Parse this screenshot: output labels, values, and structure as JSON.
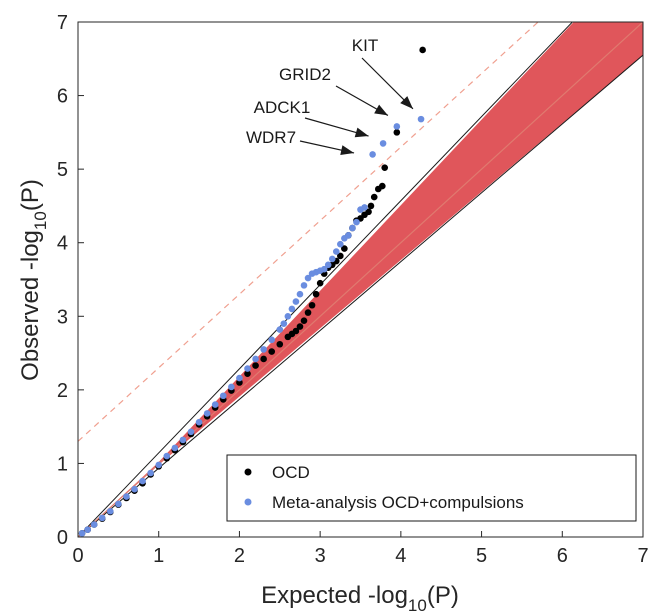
{
  "chart_data": {
    "type": "scatter",
    "xlabel": {
      "main": "Expected -log",
      "sub": "10",
      "tail": "(P)"
    },
    "ylabel": {
      "main": "Observed -log",
      "sub": "10",
      "tail": "(P)"
    },
    "xlim": [
      0,
      7
    ],
    "ylim": [
      0,
      7
    ],
    "xticks": [
      "0",
      "1",
      "2",
      "3",
      "4",
      "5",
      "6",
      "7"
    ],
    "yticks": [
      "0",
      "1",
      "2",
      "3",
      "4",
      "5",
      "6",
      "7"
    ],
    "grid": false,
    "legend_position": "bottom-right",
    "reference_line": {
      "type": "y=x",
      "color": "#e07a6f"
    },
    "significance_line": {
      "style": "dashed",
      "offset": 1.3,
      "color": "#f0a090"
    },
    "confidence_band": {
      "color": "#e0565b",
      "x": [
        1.0,
        7.0
      ],
      "lower": [
        0.98,
        6.55
      ],
      "upper": [
        1.02,
        8.0
      ]
    },
    "series": [
      {
        "name": "OCD",
        "color": "#000000",
        "points": [
          [
            0.05,
            0.05
          ],
          [
            0.12,
            0.1
          ],
          [
            0.2,
            0.17
          ],
          [
            0.3,
            0.25
          ],
          [
            0.4,
            0.34
          ],
          [
            0.5,
            0.44
          ],
          [
            0.6,
            0.53
          ],
          [
            0.7,
            0.63
          ],
          [
            0.8,
            0.73
          ],
          [
            0.9,
            0.85
          ],
          [
            1.0,
            0.96
          ],
          [
            1.1,
            1.07
          ],
          [
            1.2,
            1.18
          ],
          [
            1.3,
            1.29
          ],
          [
            1.4,
            1.4
          ],
          [
            1.5,
            1.53
          ],
          [
            1.6,
            1.64
          ],
          [
            1.7,
            1.76
          ],
          [
            1.8,
            1.87
          ],
          [
            1.9,
            1.99
          ],
          [
            2.0,
            2.1
          ],
          [
            2.1,
            2.22
          ],
          [
            2.2,
            2.33
          ],
          [
            2.3,
            2.42
          ],
          [
            2.4,
            2.52
          ],
          [
            2.5,
            2.62
          ],
          [
            2.6,
            2.72
          ],
          [
            2.65,
            2.76
          ],
          [
            2.7,
            2.8
          ],
          [
            2.75,
            2.86
          ],
          [
            2.8,
            2.94
          ],
          [
            2.85,
            3.05
          ],
          [
            2.9,
            3.15
          ],
          [
            2.95,
            3.3
          ],
          [
            3.0,
            3.45
          ],
          [
            3.05,
            3.58
          ],
          [
            3.1,
            3.66
          ],
          [
            3.15,
            3.7
          ],
          [
            3.2,
            3.75
          ],
          [
            3.25,
            3.82
          ],
          [
            3.3,
            3.92
          ],
          [
            3.35,
            4.1
          ],
          [
            3.4,
            4.2
          ],
          [
            3.45,
            4.3
          ],
          [
            3.5,
            4.33
          ],
          [
            3.55,
            4.38
          ],
          [
            3.6,
            4.42
          ],
          [
            3.63,
            4.5
          ],
          [
            3.67,
            4.62
          ],
          [
            3.72,
            4.73
          ],
          [
            3.77,
            4.77
          ],
          [
            3.8,
            5.02
          ],
          [
            3.95,
            5.5
          ],
          [
            4.27,
            6.62
          ]
        ]
      },
      {
        "name": "Meta-analysis OCD+compulsions",
        "color": "#6a8de0",
        "points": [
          [
            0.05,
            0.05
          ],
          [
            0.12,
            0.1
          ],
          [
            0.2,
            0.17
          ],
          [
            0.3,
            0.26
          ],
          [
            0.4,
            0.35
          ],
          [
            0.5,
            0.45
          ],
          [
            0.6,
            0.55
          ],
          [
            0.7,
            0.65
          ],
          [
            0.8,
            0.76
          ],
          [
            0.9,
            0.87
          ],
          [
            1.0,
            0.98
          ],
          [
            1.1,
            1.1
          ],
          [
            1.2,
            1.21
          ],
          [
            1.3,
            1.32
          ],
          [
            1.4,
            1.43
          ],
          [
            1.5,
            1.56
          ],
          [
            1.6,
            1.68
          ],
          [
            1.7,
            1.8
          ],
          [
            1.8,
            1.92
          ],
          [
            1.9,
            2.04
          ],
          [
            2.0,
            2.16
          ],
          [
            2.1,
            2.29
          ],
          [
            2.2,
            2.42
          ],
          [
            2.3,
            2.55
          ],
          [
            2.4,
            2.68
          ],
          [
            2.5,
            2.82
          ],
          [
            2.55,
            2.9
          ],
          [
            2.6,
            3.0
          ],
          [
            2.65,
            3.1
          ],
          [
            2.7,
            3.2
          ],
          [
            2.75,
            3.3
          ],
          [
            2.8,
            3.42
          ],
          [
            2.85,
            3.52
          ],
          [
            2.9,
            3.58
          ],
          [
            2.95,
            3.6
          ],
          [
            3.0,
            3.62
          ],
          [
            3.05,
            3.64
          ],
          [
            3.1,
            3.7
          ],
          [
            3.15,
            3.78
          ],
          [
            3.2,
            3.88
          ],
          [
            3.25,
            3.98
          ],
          [
            3.3,
            4.06
          ],
          [
            3.35,
            4.1
          ],
          [
            3.4,
            4.2
          ],
          [
            3.45,
            4.28
          ],
          [
            3.5,
            4.45
          ],
          [
            3.55,
            4.48
          ],
          [
            3.65,
            5.2
          ],
          [
            3.78,
            5.35
          ],
          [
            3.95,
            5.58
          ],
          [
            4.25,
            5.68
          ]
        ]
      }
    ],
    "annotations": [
      {
        "label": "KIT",
        "target": [
          4.15,
          5.82
        ]
      },
      {
        "label": "GRID2",
        "target": [
          3.84,
          5.73
        ]
      },
      {
        "label": "ADCK1",
        "target": [
          3.6,
          5.45
        ]
      },
      {
        "label": "WDR7",
        "target": [
          3.42,
          5.22
        ]
      }
    ]
  }
}
